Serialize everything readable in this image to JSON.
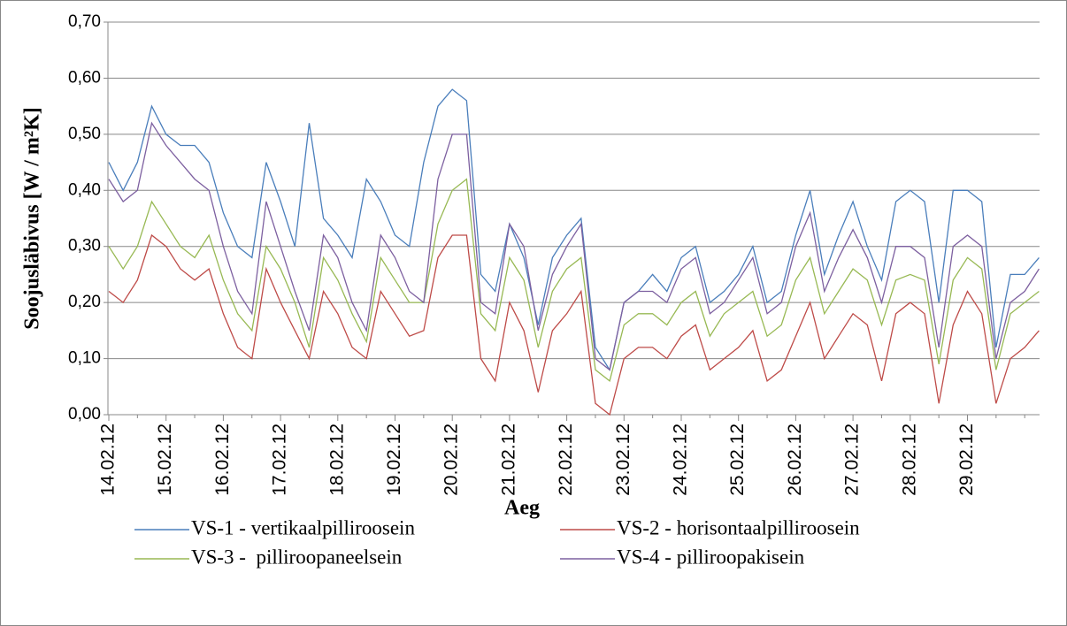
{
  "chart_data": {
    "type": "line",
    "x_label": "Aeg",
    "y_label": "Soojusläbivus [W / m²K]",
    "categories": [
      "14.02.12",
      null,
      null,
      null,
      "15.02.12",
      null,
      null,
      null,
      "16.02.12",
      null,
      null,
      null,
      "17.02.12",
      null,
      null,
      null,
      "18.02.12",
      null,
      null,
      null,
      "19.02.12",
      null,
      null,
      null,
      "20.02.12",
      null,
      null,
      null,
      "21.02.12",
      null,
      null,
      null,
      "22.02.12",
      null,
      null,
      null,
      "23.02.12",
      null,
      null,
      null,
      "24.02.12",
      null,
      null,
      null,
      "25.02.12",
      null,
      null,
      null,
      "26.02.12",
      null,
      null,
      null,
      "27.02.12",
      null,
      null,
      null,
      "28.02.12",
      null,
      null,
      null,
      "29.02.12",
      null,
      null,
      null,
      null,
      null
    ],
    "ylim": [
      0,
      0.7
    ],
    "yticks": [
      {
        "value": 0,
        "label": "0,00"
      },
      {
        "value": 0.1,
        "label": "0,10"
      },
      {
        "value": 0.2,
        "label": "0,20"
      },
      {
        "value": 0.3,
        "label": "0,30"
      },
      {
        "value": 0.4,
        "label": "0,40"
      },
      {
        "value": 0.5,
        "label": "0,50"
      },
      {
        "value": 0.6,
        "label": "0,60"
      },
      {
        "value": 0.7,
        "label": "0,70"
      }
    ],
    "grid": true,
    "legend": "bottom",
    "series": [
      {
        "name": "VS-1 - vertikaalpilliroosein",
        "color": "#4a7ebb",
        "values": [
          0.45,
          0.4,
          0.45,
          0.55,
          0.5,
          0.48,
          0.48,
          0.45,
          0.36,
          0.3,
          0.28,
          0.45,
          0.38,
          0.3,
          0.52,
          0.35,
          0.32,
          0.28,
          0.42,
          0.38,
          0.32,
          0.3,
          0.45,
          0.55,
          0.58,
          0.56,
          0.25,
          0.22,
          0.34,
          0.28,
          0.16,
          0.28,
          0.32,
          0.35,
          0.12,
          0.08,
          0.2,
          0.22,
          0.25,
          0.22,
          0.28,
          0.3,
          0.2,
          0.22,
          0.25,
          0.3,
          0.2,
          0.22,
          0.32,
          0.4,
          0.25,
          0.32,
          0.38,
          0.3,
          0.24,
          0.38,
          0.4,
          0.38,
          0.2,
          0.4,
          0.4,
          0.38,
          0.12,
          0.25,
          0.25,
          0.28
        ]
      },
      {
        "name": "VS-2 - horisontaalpilliroosein",
        "color": "#be4b48",
        "values": [
          0.22,
          0.2,
          0.24,
          0.32,
          0.3,
          0.26,
          0.24,
          0.26,
          0.18,
          0.12,
          0.1,
          0.26,
          0.2,
          0.15,
          0.1,
          0.22,
          0.18,
          0.12,
          0.1,
          0.22,
          0.18,
          0.14,
          0.15,
          0.28,
          0.32,
          0.32,
          0.1,
          0.06,
          0.2,
          0.15,
          0.04,
          0.15,
          0.18,
          0.22,
          0.02,
          0.0,
          0.1,
          0.12,
          0.12,
          0.1,
          0.14,
          0.16,
          0.08,
          0.1,
          0.12,
          0.15,
          0.06,
          0.08,
          0.14,
          0.2,
          0.1,
          0.14,
          0.18,
          0.16,
          0.06,
          0.18,
          0.2,
          0.18,
          0.02,
          0.16,
          0.22,
          0.18,
          0.02,
          0.1,
          0.12,
          0.15
        ]
      },
      {
        "name": "VS-3 -  pilliroopaneelsein",
        "color": "#98b954",
        "values": [
          0.3,
          0.26,
          0.3,
          0.38,
          0.34,
          0.3,
          0.28,
          0.32,
          0.24,
          0.18,
          0.15,
          0.3,
          0.26,
          0.2,
          0.12,
          0.28,
          0.24,
          0.18,
          0.13,
          0.28,
          0.24,
          0.2,
          0.2,
          0.34,
          0.4,
          0.42,
          0.18,
          0.15,
          0.28,
          0.24,
          0.12,
          0.22,
          0.26,
          0.28,
          0.08,
          0.06,
          0.16,
          0.18,
          0.18,
          0.16,
          0.2,
          0.22,
          0.14,
          0.18,
          0.2,
          0.22,
          0.14,
          0.16,
          0.24,
          0.28,
          0.18,
          0.22,
          0.26,
          0.24,
          0.16,
          0.24,
          0.25,
          0.24,
          0.09,
          0.24,
          0.28,
          0.26,
          0.08,
          0.18,
          0.2,
          0.22
        ]
      },
      {
        "name": "VS-4 - pilliroopakisein",
        "color": "#7d60a0",
        "values": [
          0.42,
          0.38,
          0.4,
          0.52,
          0.48,
          0.45,
          0.42,
          0.4,
          0.3,
          0.22,
          0.18,
          0.38,
          0.3,
          0.22,
          0.15,
          0.32,
          0.28,
          0.2,
          0.15,
          0.32,
          0.28,
          0.22,
          0.2,
          0.42,
          0.5,
          0.5,
          0.2,
          0.18,
          0.34,
          0.3,
          0.15,
          0.25,
          0.3,
          0.34,
          0.1,
          0.08,
          0.2,
          0.22,
          0.22,
          0.2,
          0.26,
          0.28,
          0.18,
          0.2,
          0.24,
          0.28,
          0.18,
          0.2,
          0.3,
          0.36,
          0.22,
          0.28,
          0.33,
          0.28,
          0.2,
          0.3,
          0.3,
          0.28,
          0.12,
          0.3,
          0.32,
          0.3,
          0.1,
          0.2,
          0.22,
          0.26
        ]
      }
    ]
  }
}
